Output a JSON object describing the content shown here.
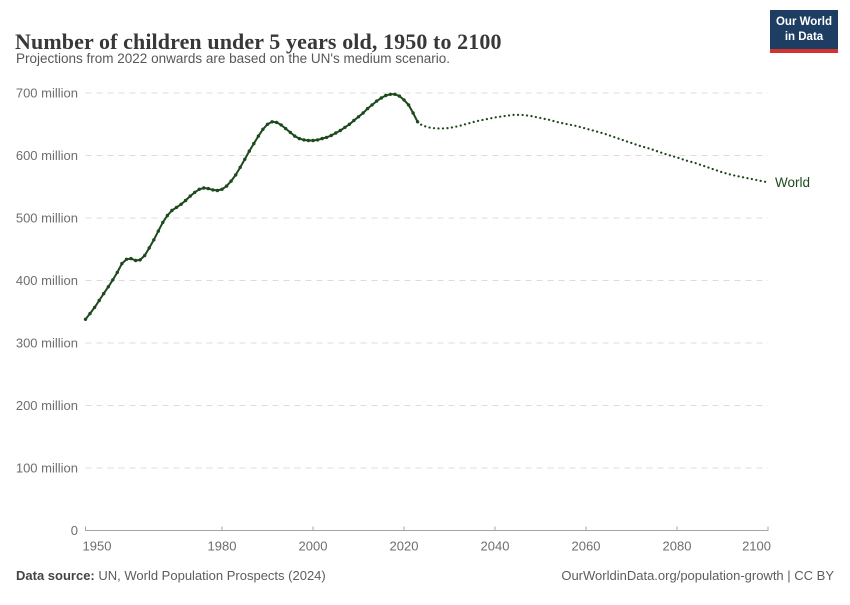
{
  "header": {
    "title": "Number of children under 5 years old, 1950 to 2100",
    "subtitle": "Projections from 2022 onwards are based on the UN's medium scenario.",
    "logo": {
      "line1": "Our World",
      "line2": "in Data",
      "bg_color": "#1d3d63",
      "bar_color": "#d0342c"
    }
  },
  "footer": {
    "source_prefix": "Data source:",
    "source_text": " UN, World Population Prospects (2024)",
    "link_text": "OurWorldinData.org/population-growth | CC BY"
  },
  "chart_data": {
    "type": "line",
    "title": "Number of children under 5 years old, 1950 to 2100",
    "ylabel": "",
    "xlabel": "",
    "xlim": [
      1950,
      2100
    ],
    "ylim": [
      0,
      700000000
    ],
    "grid": "horizontal-dashed",
    "line_color": "#1d4a1d",
    "grid_color": "#dcdcdc",
    "axis_color": "#a5a5a5",
    "tick_label_color": "#6e6e6e",
    "end_label": "World",
    "projection_style": "dotted-from-2022",
    "x_ticks": [
      1950,
      1980,
      2000,
      2020,
      2040,
      2060,
      2080,
      2100
    ],
    "y_ticks": [
      {
        "value": 0,
        "label": "0"
      },
      {
        "value": 100,
        "label": "100 million"
      },
      {
        "value": 200,
        "label": "200 million"
      },
      {
        "value": 300,
        "label": "300 million"
      },
      {
        "value": 400,
        "label": "400 million"
      },
      {
        "value": 500,
        "label": "500 million"
      },
      {
        "value": 600,
        "label": "600 million"
      },
      {
        "value": 700,
        "label": "700 million"
      }
    ],
    "unit": "millions of children under 5",
    "series": [
      {
        "name": "World",
        "observed": {
          "years": [
            1950,
            1951,
            1952,
            1953,
            1954,
            1955,
            1956,
            1957,
            1958,
            1959,
            1960,
            1961,
            1962,
            1963,
            1964,
            1965,
            1966,
            1967,
            1968,
            1969,
            1970,
            1971,
            1972,
            1973,
            1974,
            1975,
            1976,
            1977,
            1978,
            1979,
            1980,
            1981,
            1982,
            1983,
            1984,
            1985,
            1986,
            1987,
            1988,
            1989,
            1990,
            1991,
            1992,
            1993,
            1994,
            1995,
            1996,
            1997,
            1998,
            1999,
            2000,
            2001,
            2002,
            2003,
            2004,
            2005,
            2006,
            2007,
            2008,
            2009,
            2010,
            2011,
            2012,
            2013,
            2014,
            2015,
            2016,
            2017,
            2018,
            2019,
            2020,
            2021,
            2022,
            2023
          ],
          "values": [
            338,
            347,
            357,
            368,
            379,
            390,
            401,
            413,
            427,
            434,
            435,
            432,
            433,
            440,
            452,
            465,
            479,
            493,
            504,
            512,
            517,
            522,
            528,
            535,
            541,
            546,
            548,
            547,
            545,
            544,
            546,
            551,
            559,
            569,
            581,
            594,
            607,
            619,
            631,
            642,
            650,
            654,
            653,
            649,
            643,
            637,
            631,
            627,
            625,
            624,
            624,
            625,
            627,
            629,
            632,
            636,
            640,
            645,
            650,
            656,
            662,
            668,
            675,
            681,
            687,
            692,
            696,
            698,
            698,
            695,
            689,
            681,
            668,
            654
          ]
        },
        "projected": {
          "years": [
            2023,
            2024,
            2026,
            2028,
            2030,
            2032,
            2034,
            2036,
            2038,
            2040,
            2042,
            2044,
            2046,
            2048,
            2050,
            2052,
            2054,
            2056,
            2058,
            2060,
            2062,
            2064,
            2066,
            2068,
            2070,
            2072,
            2074,
            2076,
            2078,
            2080,
            2082,
            2084,
            2086,
            2088,
            2090,
            2092,
            2094,
            2096,
            2098,
            2100
          ],
          "values": [
            654,
            648,
            644,
            643,
            644,
            647,
            651,
            655,
            658,
            661,
            663,
            665,
            665,
            663,
            660,
            657,
            653,
            650,
            647,
            643,
            639,
            635,
            630,
            625,
            620,
            615,
            611,
            606,
            601,
            597,
            592,
            588,
            583,
            578,
            573,
            569,
            566,
            563,
            560,
            557
          ]
        }
      }
    ]
  }
}
